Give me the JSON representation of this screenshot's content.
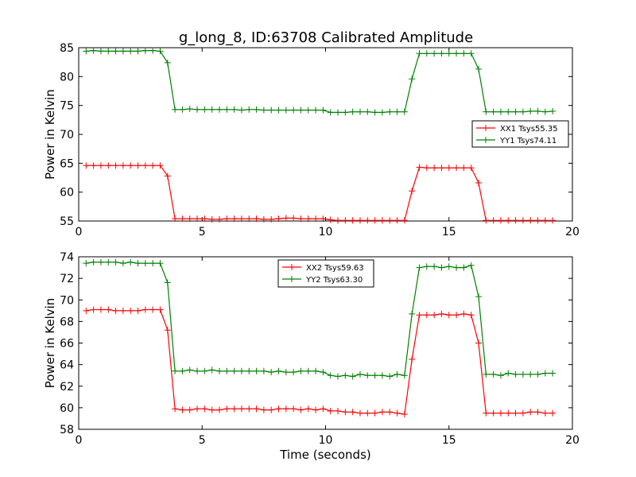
{
  "figure": {
    "title": "g_long_8, ID:63708 Calibrated Amplitude"
  },
  "chart_data": [
    {
      "type": "line",
      "title": "g_long_8, ID:63708 Calibrated Amplitude",
      "xlabel": "",
      "ylabel": "Power in Kelvin",
      "xlim": [
        0,
        20
      ],
      "ylim": [
        55,
        85
      ],
      "xticks": [
        0,
        5,
        10,
        15,
        20
      ],
      "yticks": [
        55,
        60,
        65,
        70,
        75,
        80,
        85
      ],
      "grid": false,
      "legend_position": "right",
      "series": [
        {
          "name": "XX1 Tsys55.35",
          "color": "#ff0000",
          "x": [
            0.3,
            0.6,
            0.9,
            1.2,
            1.5,
            1.8,
            2.1,
            2.4,
            2.7,
            3.0,
            3.3,
            3.6,
            3.9,
            4.2,
            4.5,
            4.8,
            5.1,
            5.4,
            5.7,
            6.0,
            6.3,
            6.6,
            6.9,
            7.2,
            7.5,
            7.8,
            8.1,
            8.4,
            8.7,
            9.0,
            9.3,
            9.6,
            9.9,
            10.2,
            10.5,
            10.8,
            11.1,
            11.4,
            11.7,
            12.0,
            12.3,
            12.6,
            12.9,
            13.2,
            13.5,
            13.8,
            14.1,
            14.4,
            14.7,
            15.0,
            15.3,
            15.6,
            15.9,
            16.2,
            16.5,
            16.8,
            17.1,
            17.4,
            17.7,
            18.0,
            18.3,
            18.6,
            18.9,
            19.2
          ],
          "values": [
            64.6,
            64.6,
            64.6,
            64.6,
            64.6,
            64.6,
            64.6,
            64.6,
            64.6,
            64.6,
            64.6,
            62.8,
            55.4,
            55.4,
            55.4,
            55.4,
            55.4,
            55.3,
            55.3,
            55.4,
            55.4,
            55.4,
            55.4,
            55.4,
            55.3,
            55.3,
            55.4,
            55.5,
            55.5,
            55.4,
            55.4,
            55.4,
            55.4,
            55.2,
            55.1,
            55.1,
            55.1,
            55.1,
            55.1,
            55.1,
            55.1,
            55.1,
            55.1,
            55.1,
            60.2,
            64.3,
            64.2,
            64.2,
            64.2,
            64.2,
            64.2,
            64.2,
            64.2,
            61.6,
            55.1,
            55.1,
            55.1,
            55.1,
            55.1,
            55.1,
            55.1,
            55.1,
            55.1,
            55.1
          ]
        },
        {
          "name": "YY1 Tsys74.11",
          "color": "#008000",
          "x": [
            0.3,
            0.6,
            0.9,
            1.2,
            1.5,
            1.8,
            2.1,
            2.4,
            2.7,
            3.0,
            3.3,
            3.6,
            3.9,
            4.2,
            4.5,
            4.8,
            5.1,
            5.4,
            5.7,
            6.0,
            6.3,
            6.6,
            6.9,
            7.2,
            7.5,
            7.8,
            8.1,
            8.4,
            8.7,
            9.0,
            9.3,
            9.6,
            9.9,
            10.2,
            10.5,
            10.8,
            11.1,
            11.4,
            11.7,
            12.0,
            12.3,
            12.6,
            12.9,
            13.2,
            13.5,
            13.8,
            14.1,
            14.4,
            14.7,
            15.0,
            15.3,
            15.6,
            15.9,
            16.2,
            16.5,
            16.8,
            17.1,
            17.4,
            17.7,
            18.0,
            18.3,
            18.6,
            18.9,
            19.2
          ],
          "values": [
            84.4,
            84.5,
            84.4,
            84.4,
            84.4,
            84.4,
            84.4,
            84.4,
            84.5,
            84.5,
            84.4,
            82.4,
            74.3,
            74.3,
            74.4,
            74.3,
            74.3,
            74.3,
            74.3,
            74.3,
            74.3,
            74.2,
            74.3,
            74.3,
            74.2,
            74.2,
            74.2,
            74.2,
            74.2,
            74.2,
            74.2,
            74.2,
            74.2,
            73.8,
            73.8,
            73.8,
            73.9,
            73.9,
            73.9,
            73.8,
            73.8,
            73.9,
            73.9,
            73.9,
            79.6,
            84.0,
            84.0,
            84.0,
            84.0,
            84.0,
            84.0,
            84.0,
            84.0,
            81.3,
            73.9,
            73.9,
            73.9,
            73.9,
            73.9,
            73.9,
            74.0,
            74.0,
            73.9,
            74.0
          ]
        }
      ]
    },
    {
      "type": "line",
      "title": "",
      "xlabel": "Time (seconds)",
      "ylabel": "Power in Kelvin",
      "xlim": [
        0,
        20
      ],
      "ylim": [
        58,
        74
      ],
      "xticks": [
        0,
        5,
        10,
        15,
        20
      ],
      "yticks": [
        58,
        60,
        62,
        64,
        66,
        68,
        70,
        72,
        74
      ],
      "grid": false,
      "legend_position": "top-center",
      "series": [
        {
          "name": "XX2 Tsys59.63",
          "color": "#ff0000",
          "x": [
            0.3,
            0.6,
            0.9,
            1.2,
            1.5,
            1.8,
            2.1,
            2.4,
            2.7,
            3.0,
            3.3,
            3.6,
            3.9,
            4.2,
            4.5,
            4.8,
            5.1,
            5.4,
            5.7,
            6.0,
            6.3,
            6.6,
            6.9,
            7.2,
            7.5,
            7.8,
            8.1,
            8.4,
            8.7,
            9.0,
            9.3,
            9.6,
            9.9,
            10.2,
            10.5,
            10.8,
            11.1,
            11.4,
            11.7,
            12.0,
            12.3,
            12.6,
            12.9,
            13.2,
            13.5,
            13.8,
            14.1,
            14.4,
            14.7,
            15.0,
            15.3,
            15.6,
            15.9,
            16.2,
            16.5,
            16.8,
            17.1,
            17.4,
            17.7,
            18.0,
            18.3,
            18.6,
            18.9,
            19.2
          ],
          "values": [
            69.0,
            69.1,
            69.1,
            69.1,
            69.0,
            69.0,
            69.0,
            69.0,
            69.1,
            69.1,
            69.1,
            67.2,
            59.9,
            59.8,
            59.8,
            59.9,
            59.9,
            59.8,
            59.8,
            59.9,
            59.9,
            59.9,
            59.9,
            59.9,
            59.8,
            59.8,
            59.9,
            59.9,
            59.9,
            59.8,
            59.9,
            59.8,
            59.9,
            59.7,
            59.7,
            59.6,
            59.6,
            59.5,
            59.5,
            59.5,
            59.6,
            59.6,
            59.5,
            59.4,
            64.5,
            68.6,
            68.6,
            68.6,
            68.7,
            68.6,
            68.6,
            68.7,
            68.6,
            66.0,
            59.5,
            59.5,
            59.5,
            59.5,
            59.5,
            59.5,
            59.6,
            59.6,
            59.5,
            59.5
          ]
        },
        {
          "name": "YY2 Tsys63.30",
          "color": "#008000",
          "x": [
            0.3,
            0.6,
            0.9,
            1.2,
            1.5,
            1.8,
            2.1,
            2.4,
            2.7,
            3.0,
            3.3,
            3.6,
            3.9,
            4.2,
            4.5,
            4.8,
            5.1,
            5.4,
            5.7,
            6.0,
            6.3,
            6.6,
            6.9,
            7.2,
            7.5,
            7.8,
            8.1,
            8.4,
            8.7,
            9.0,
            9.3,
            9.6,
            9.9,
            10.2,
            10.5,
            10.8,
            11.1,
            11.4,
            11.7,
            12.0,
            12.3,
            12.6,
            12.9,
            13.2,
            13.5,
            13.8,
            14.1,
            14.4,
            14.7,
            15.0,
            15.3,
            15.6,
            15.9,
            16.2,
            16.5,
            16.8,
            17.1,
            17.4,
            17.7,
            18.0,
            18.3,
            18.6,
            18.9,
            19.2
          ],
          "values": [
            73.4,
            73.5,
            73.5,
            73.5,
            73.5,
            73.4,
            73.5,
            73.4,
            73.4,
            73.4,
            73.4,
            71.6,
            63.4,
            63.4,
            63.5,
            63.4,
            63.4,
            63.5,
            63.4,
            63.4,
            63.4,
            63.4,
            63.4,
            63.4,
            63.4,
            63.3,
            63.4,
            63.3,
            63.3,
            63.4,
            63.4,
            63.4,
            63.3,
            63.0,
            62.9,
            63.0,
            62.9,
            63.1,
            63.0,
            63.0,
            63.0,
            62.9,
            63.1,
            63.0,
            68.7,
            73.0,
            73.1,
            73.1,
            73.0,
            73.1,
            73.0,
            73.0,
            73.2,
            70.3,
            63.1,
            63.1,
            63.0,
            63.2,
            63.1,
            63.1,
            63.1,
            63.1,
            63.2,
            63.2
          ]
        }
      ]
    }
  ]
}
